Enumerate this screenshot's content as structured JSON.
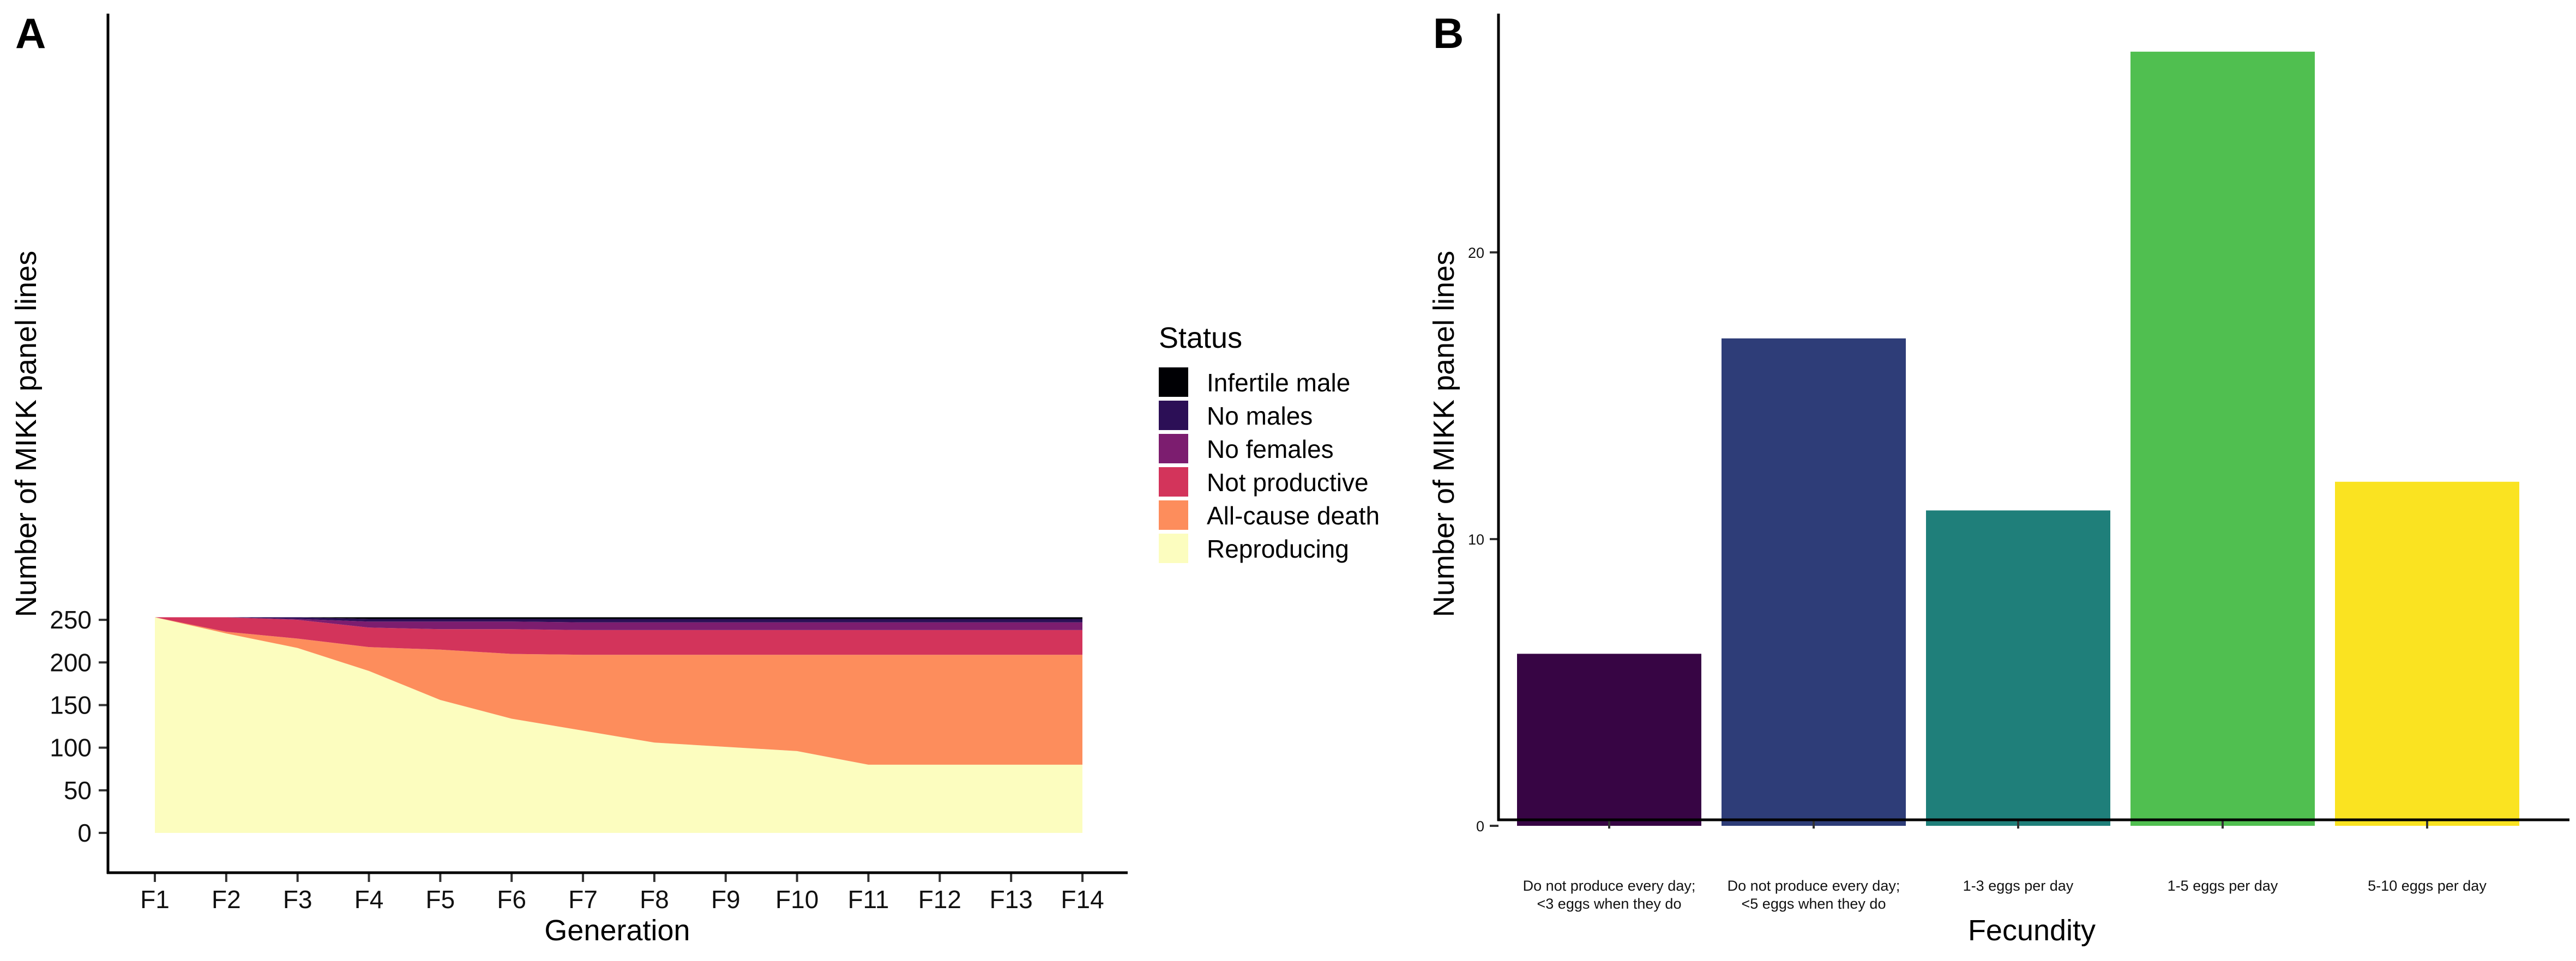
{
  "chart_data": [
    {
      "panel": "A",
      "type": "area",
      "stacked": true,
      "xlabel": "Generation",
      "ylabel": "Number of MIKK panel lines",
      "categories": [
        "F1",
        "F2",
        "F3",
        "F4",
        "F5",
        "F6",
        "F7",
        "F8",
        "F9",
        "F10",
        "F11",
        "F12",
        "F13",
        "F14"
      ],
      "ylim": [
        0,
        260
      ],
      "yticks": [
        0,
        50,
        100,
        150,
        200,
        250
      ],
      "grid": false,
      "legend": {
        "title": "Status",
        "placement": "right",
        "order": [
          "Infertile male",
          "No males",
          "No females",
          "Not productive",
          "All-cause death",
          "Reproducing"
        ]
      },
      "series": [
        {
          "name": "Reproducing",
          "color": "#FCFDBF",
          "values": [
            253,
            234,
            217,
            190,
            156,
            134,
            120,
            106,
            101,
            96,
            80,
            80,
            80,
            80
          ]
        },
        {
          "name": "All-cause death",
          "color": "#FD8D5C",
          "values": [
            0,
            2,
            11,
            28,
            59,
            76,
            89,
            103,
            108,
            113,
            129,
            129,
            129,
            129
          ]
        },
        {
          "name": "Not productive",
          "color": "#D3345B",
          "values": [
            0,
            17,
            22,
            23,
            24,
            29,
            29,
            29,
            29,
            29,
            29,
            29,
            29,
            29
          ]
        },
        {
          "name": "No females",
          "color": "#7C1D6F",
          "values": [
            0,
            0,
            1,
            7,
            9,
            9,
            9,
            9,
            9,
            9,
            9,
            9,
            9,
            9
          ]
        },
        {
          "name": "No males",
          "color": "#2C0F56",
          "values": [
            0,
            0,
            2,
            3,
            3,
            3,
            4,
            4,
            4,
            4,
            4,
            4,
            4,
            4
          ]
        },
        {
          "name": "Infertile male",
          "color": "#000004",
          "values": [
            0,
            0,
            0,
            2,
            2,
            2,
            2,
            2,
            2,
            2,
            2,
            2,
            2,
            2
          ]
        }
      ]
    },
    {
      "panel": "B",
      "type": "bar",
      "xlabel": "Fecundity",
      "ylabel": "Number of MIKK panel lines",
      "categories": [
        [
          "Do not produce every day;",
          "<3 eggs when they do"
        ],
        [
          "Do not produce every day;",
          "<5 eggs when they do"
        ],
        [
          "1-3 eggs per day"
        ],
        [
          "1-5 eggs per day"
        ],
        [
          "5-10 eggs per day"
        ]
      ],
      "values": [
        6,
        17,
        11,
        27,
        12
      ],
      "colors": [
        "#370544",
        "#2E3D78",
        "#1F7F7A",
        "#50BF50",
        "#FAE321"
      ],
      "ylim": [
        0,
        27
      ],
      "yticks": [
        0,
        10,
        20
      ],
      "grid": false
    }
  ]
}
